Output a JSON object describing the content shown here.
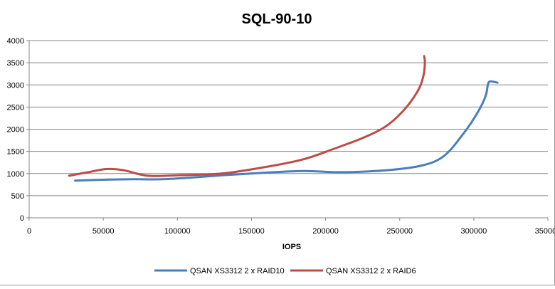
{
  "chart_data": {
    "type": "line",
    "title": "SQL-90-10",
    "xlabel": "IOPS",
    "ylabel": "",
    "xlim": [
      0,
      350000
    ],
    "ylim": [
      0,
      4000
    ],
    "x_ticks": [
      "0",
      "50000",
      "100000",
      "150000",
      "200000",
      "250000",
      "300000",
      "350000"
    ],
    "y_ticks": [
      "0",
      "500",
      "1000",
      "1500",
      "2000",
      "2500",
      "3000",
      "3500",
      "4000"
    ],
    "grid": "horizontal",
    "legend_position": "bottom",
    "series": [
      {
        "name": "QSAN XS3312 2 x RAID10",
        "color": "#4a7ebb",
        "points": [
          [
            31000,
            840
          ],
          [
            50000,
            860
          ],
          [
            70000,
            870
          ],
          [
            90000,
            870
          ],
          [
            110000,
            910
          ],
          [
            130000,
            960
          ],
          [
            155000,
            1010
          ],
          [
            185000,
            1055
          ],
          [
            210000,
            1030
          ],
          [
            240000,
            1070
          ],
          [
            265000,
            1180
          ],
          [
            280000,
            1400
          ],
          [
            293000,
            1900
          ],
          [
            303000,
            2400
          ],
          [
            308000,
            2750
          ],
          [
            309500,
            3000
          ],
          [
            311000,
            3080
          ],
          [
            316000,
            3050
          ]
        ]
      },
      {
        "name": "QSAN XS3312 2 x RAID6",
        "color": "#be4b48",
        "points": [
          [
            27000,
            950
          ],
          [
            40000,
            1030
          ],
          [
            52000,
            1100
          ],
          [
            63000,
            1080
          ],
          [
            80000,
            950
          ],
          [
            100000,
            960
          ],
          [
            130000,
            1000
          ],
          [
            160000,
            1150
          ],
          [
            185000,
            1320
          ],
          [
            205000,
            1550
          ],
          [
            225000,
            1800
          ],
          [
            240000,
            2050
          ],
          [
            252000,
            2400
          ],
          [
            262000,
            2850
          ],
          [
            266000,
            3200
          ],
          [
            267000,
            3500
          ],
          [
            266500,
            3650
          ]
        ]
      }
    ]
  }
}
